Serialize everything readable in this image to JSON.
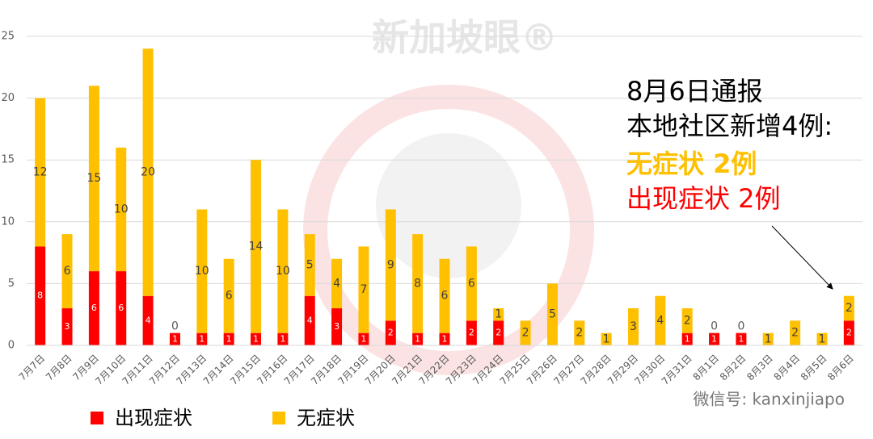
{
  "chart_data": {
    "type": "stacked-bar",
    "categories": [
      "7月7日",
      "7月8日",
      "7月9日",
      "7月10日",
      "7月11日",
      "7月12日",
      "7月13日",
      "7月14日",
      "7月15日",
      "7月16日",
      "7月17日",
      "7月18日",
      "7月19日",
      "7月20日",
      "7月21日",
      "7月22日",
      "7月23日",
      "7月24日",
      "7月25日",
      "7月26日",
      "7月27日",
      "7月28日",
      "7月29日",
      "7月30日",
      "7月31日",
      "8月1日",
      "8月2日",
      "8月3日",
      "8月4日",
      "8月5日",
      "8月6日"
    ],
    "series": [
      {
        "name": "出现症状",
        "color": "#ff0000",
        "values": [
          8,
          3,
          6,
          6,
          4,
          1,
          1,
          1,
          1,
          1,
          4,
          3,
          1,
          2,
          1,
          1,
          2,
          2,
          0,
          0,
          0,
          0,
          0,
          0,
          1,
          1,
          1,
          0,
          0,
          0,
          2
        ]
      },
      {
        "name": "无症状",
        "color": "#ffc000",
        "values": [
          12,
          6,
          15,
          10,
          20,
          0,
          10,
          6,
          14,
          10,
          5,
          4,
          7,
          9,
          8,
          6,
          6,
          1,
          2,
          5,
          2,
          1,
          3,
          4,
          2,
          0,
          0,
          1,
          2,
          1,
          2
        ]
      }
    ],
    "ylim": [
      0,
      25
    ],
    "yticks": [
      0,
      5,
      10,
      15,
      20,
      25
    ],
    "grid": true,
    "annotation": [
      "8月6日通报",
      "本地社区新增4例:",
      "无症状 2例",
      "出现症状 2例"
    ],
    "watermark": "新加坡眼®",
    "wechat": "微信号: kanxinjiapo"
  }
}
